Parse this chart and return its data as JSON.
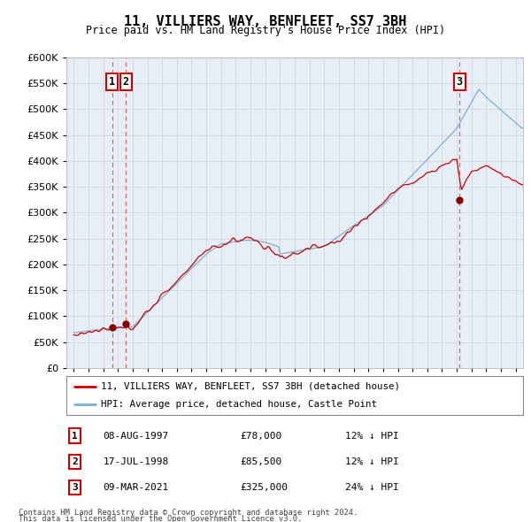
{
  "title": "11, VILLIERS WAY, BENFLEET, SS7 3BH",
  "subtitle": "Price paid vs. HM Land Registry's House Price Index (HPI)",
  "ylim": [
    0,
    600000
  ],
  "yticks": [
    0,
    50000,
    100000,
    150000,
    200000,
    250000,
    300000,
    350000,
    400000,
    450000,
    500000,
    550000,
    600000
  ],
  "xlim_start": 1994.5,
  "xlim_end": 2025.5,
  "transactions": [
    {
      "id": 1,
      "date": "08-AUG-1997",
      "year": 1997.6,
      "price": 78000,
      "pct": "12%",
      "dir": "↓"
    },
    {
      "id": 2,
      "date": "17-JUL-1998",
      "year": 1998.55,
      "price": 85500,
      "pct": "12%",
      "dir": "↓"
    },
    {
      "id": 3,
      "date": "09-MAR-2021",
      "year": 2021.18,
      "price": 325000,
      "pct": "24%",
      "dir": "↓"
    }
  ],
  "legend_line1": "11, VILLIERS WAY, BENFLEET, SS7 3BH (detached house)",
  "legend_line2": "HPI: Average price, detached house, Castle Point",
  "footer1": "Contains HM Land Registry data © Crown copyright and database right 2024.",
  "footer2": "This data is licensed under the Open Government Licence v3.0.",
  "line_color_red": "#cc0000",
  "line_color_blue": "#7bafd4",
  "marker_color": "#880000",
  "dashed_color": "#dd6666",
  "box_color": "#cc0000",
  "bg_color": "#ffffff",
  "plot_bg_color": "#e8eef5",
  "grid_color": "#c8d4e0"
}
